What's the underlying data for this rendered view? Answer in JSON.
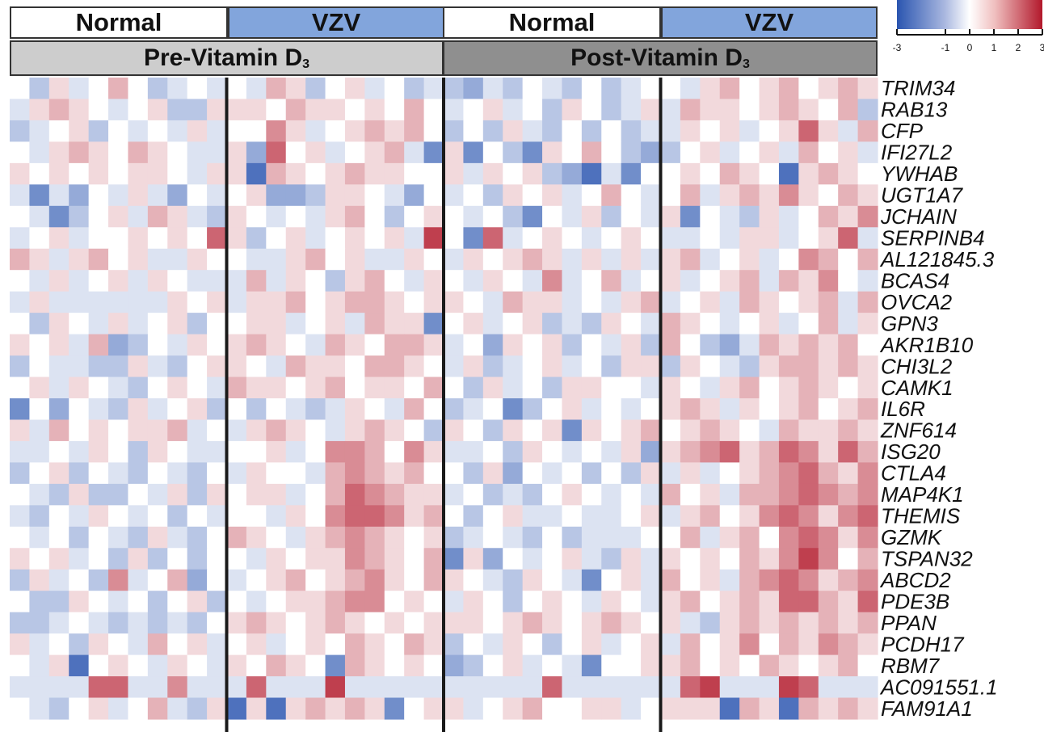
{
  "groups": [
    "Normal",
    "VZV",
    "Normal",
    "VZV"
  ],
  "conditions": [
    "Pre-Vitamin D",
    "Post-Vitamin D"
  ],
  "subscript": "3",
  "colors": {
    "low": "#2a55b0",
    "mid": "#ffffff",
    "high": "#b2182b",
    "normal_header": "#ffffff",
    "vzv_header": "#82a5dc",
    "pre_header": "#cdcdcd",
    "post_header": "#8f8f8f"
  },
  "chart_data": {
    "type": "heatmap",
    "scale": {
      "min": -3,
      "max": 3,
      "ticks": [
        -3,
        -1,
        0,
        1,
        2,
        3
      ],
      "colormap": [
        "blue",
        "white",
        "red"
      ]
    },
    "columns_per_block": 11,
    "blocks": [
      "Pre-Vitamin D3 Normal",
      "Pre-Vitamin D3 VZV",
      "Post-Vitamin D3 Normal",
      "Post-Vitamin D3 VZV"
    ],
    "genes": [
      "TRIM34",
      "RAB13",
      "CFP",
      "IFI27L2",
      "YWHAB",
      "UGT1A7",
      "JCHAIN",
      "SERPINB4",
      "AL121845.3",
      "BCAS4",
      "OVCA2",
      "GPN3",
      "AKR1B10",
      "CHI3L2",
      "CAMK1",
      "IL6R",
      "ZNF614",
      "ISG20",
      "CTLA4",
      "MAP4K1",
      "THEMIS",
      "GZMK",
      "TSPAN32",
      "ABCD2",
      "PDE3B",
      "PPAN",
      "PCDH17",
      "RBM7",
      "AC091551.1",
      "FAM91A1"
    ],
    "values": [
      [
        0,
        -1,
        0.5,
        -0.5,
        0,
        1,
        0,
        -1,
        -0.5,
        0,
        -0.5,
        0,
        -0.5,
        1,
        0.5,
        -1,
        0,
        0.5,
        -0.5,
        0,
        -1,
        -0.5,
        -1,
        -1.5,
        -0.5,
        -1,
        0,
        -0.5,
        -1,
        0,
        -1,
        -0.5,
        0,
        0,
        -0.5,
        0.5,
        1,
        0,
        0.5,
        1,
        0,
        0.5,
        1,
        0.5
      ],
      [
        -0.5,
        0.5,
        1,
        0.5,
        0,
        -0.5,
        0,
        0.5,
        -1,
        -1,
        0.5,
        0.5,
        0.5,
        0,
        1,
        0.5,
        0.5,
        0,
        0.5,
        0,
        1,
        0,
        -0.5,
        0,
        0.5,
        -0.5,
        0,
        -1,
        0.5,
        0,
        -1,
        -0.5,
        0.5,
        -0.5,
        1,
        0.5,
        0.5,
        0,
        0.5,
        1,
        0.5,
        0,
        1,
        -1
      ],
      [
        -1,
        -0.5,
        0,
        0.5,
        -1,
        0,
        -0.5,
        0,
        -0.5,
        0.5,
        -0.5,
        0,
        0,
        1.5,
        0.5,
        -0.5,
        0,
        0.5,
        1,
        0.5,
        1,
        0,
        -1,
        0,
        -1,
        0.5,
        -0.5,
        -1,
        0,
        -1,
        0,
        -1,
        -0.5,
        -0.5,
        0.5,
        0,
        0.5,
        -0.5,
        0,
        0.5,
        2,
        0.5,
        -0.5,
        1
      ],
      [
        0,
        -0.5,
        0.5,
        1,
        0.5,
        0,
        1,
        0.5,
        0,
        -0.5,
        -0.5,
        0.5,
        -1.5,
        2,
        0,
        0.5,
        -0.5,
        0,
        0.5,
        1,
        -0.5,
        -2,
        0.5,
        -2,
        0,
        -1,
        -2,
        0.5,
        0,
        1,
        0,
        -1,
        -1.5,
        -1,
        0,
        0.5,
        -0.5,
        0,
        0.5,
        -0.5,
        1,
        0,
        0.5,
        -0.5
      ],
      [
        0.5,
        0,
        0.5,
        0,
        0.5,
        0,
        0.5,
        0.5,
        0,
        -0.5,
        0.5,
        0.5,
        -2.5,
        1,
        0.5,
        0,
        0.5,
        1,
        0.5,
        0.5,
        0,
        0,
        0.5,
        -0.5,
        0.5,
        0,
        0.5,
        -1,
        -1.5,
        -2.5,
        -0.5,
        -2,
        0,
        0,
        0.5,
        0,
        1,
        0.5,
        0,
        -2.5,
        0.5,
        1,
        0.5,
        0
      ],
      [
        -0.5,
        -2,
        -0.5,
        -1.5,
        0,
        -0.5,
        0.5,
        -0.5,
        -1.5,
        0,
        -0.5,
        0,
        0.5,
        -1.5,
        -1.5,
        -1,
        0.5,
        0.5,
        0,
        -0.5,
        -1.5,
        0,
        -0.5,
        0,
        -1,
        0.5,
        0,
        0.5,
        -0.5,
        0,
        1,
        0,
        -0.5,
        0,
        1,
        -0.5,
        0.5,
        1,
        0.5,
        1.5,
        0.5,
        0,
        1,
        0.5
      ],
      [
        0,
        -0.5,
        -2,
        -1,
        0,
        0.5,
        -0.5,
        1,
        0.5,
        -0.5,
        -1,
        0.5,
        0,
        -0.5,
        0,
        -0.5,
        0.5,
        1,
        0,
        -1,
        0,
        0.5,
        0,
        -0.5,
        0,
        -1,
        -2,
        0,
        -0.5,
        0.5,
        -1,
        0,
        -0.5,
        0.5,
        -2,
        0,
        -0.5,
        -1,
        0.5,
        -0.5,
        0,
        1,
        0.5,
        1.5
      ],
      [
        -0.5,
        0,
        0.5,
        -0.5,
        0,
        0,
        0.5,
        0,
        0.5,
        0,
        2,
        0.5,
        -1,
        0,
        0.5,
        -0.5,
        0,
        0.5,
        0,
        0.5,
        -0.5,
        2.5,
        0,
        -2,
        2,
        -0.5,
        0,
        0.5,
        0,
        -0.5,
        0,
        0.5,
        0,
        -0.5,
        -0.5,
        0,
        -0.5,
        0.5,
        0.5,
        -0.5,
        0,
        0.5,
        2,
        -0.5
      ],
      [
        1,
        0.5,
        -0.5,
        0.5,
        1,
        0,
        0.5,
        -0.5,
        -0.5,
        0.5,
        0,
        0,
        -0.5,
        -0.5,
        0.5,
        1,
        0,
        0.5,
        -0.5,
        -0.5,
        0.5,
        0,
        -0.5,
        0.5,
        0,
        0.5,
        1,
        0.5,
        -0.5,
        0.5,
        -0.5,
        0.5,
        -0.5,
        0.5,
        1,
        -0.5,
        0,
        0.5,
        -0.5,
        0,
        1.5,
        1,
        0,
        1
      ],
      [
        0,
        -0.5,
        0.5,
        -0.5,
        0,
        0.5,
        -0.5,
        0.5,
        0,
        -0.5,
        -0.5,
        -0.5,
        1,
        -0.5,
        0.5,
        0,
        -1,
        0.5,
        1,
        0,
        -0.5,
        0.5,
        0,
        -0.5,
        0.5,
        0,
        -0.5,
        1.5,
        -0.5,
        0,
        1,
        -0.5,
        0,
        0.5,
        -0.5,
        0,
        0.5,
        1,
        -0.5,
        1,
        0.5,
        1.5,
        0,
        -0.5
      ],
      [
        -0.5,
        0.5,
        -0.5,
        -0.5,
        -0.5,
        -0.5,
        -0.5,
        -0.5,
        0.5,
        0,
        0.5,
        -0.5,
        0.5,
        0.5,
        1,
        0,
        0.5,
        1,
        1,
        0.5,
        0,
        0.5,
        0.5,
        0,
        -0.5,
        1,
        0.5,
        0.5,
        -0.5,
        0,
        -0.5,
        0.5,
        1,
        -0.5,
        0,
        0.5,
        -0.5,
        1,
        0.5,
        0,
        0.5,
        1,
        -0.5,
        1
      ],
      [
        0,
        -1,
        0.5,
        0,
        -0.5,
        0.5,
        -0.5,
        0,
        0.5,
        -1,
        0,
        0,
        0.5,
        0.5,
        -0.5,
        0,
        0.5,
        -0.5,
        1,
        0.5,
        0.5,
        -2,
        0,
        0.5,
        -0.5,
        0,
        0.5,
        -1,
        -0.5,
        -1,
        0.5,
        0,
        -0.5,
        1,
        0.5,
        0,
        -0.5,
        0,
        0.5,
        -0.5,
        0,
        1,
        -0.5,
        0.5
      ],
      [
        0.5,
        0,
        0.5,
        -0.5,
        1,
        -1.5,
        -1,
        0,
        -0.5,
        0.5,
        0,
        0.5,
        1,
        0.5,
        0,
        -0.5,
        1,
        0.5,
        0,
        1,
        1,
        0.5,
        -0.5,
        0,
        -1.5,
        0.5,
        0,
        0.5,
        -1,
        0,
        -0.5,
        0.5,
        -1,
        1,
        0,
        -1,
        -1.5,
        -0.5,
        1,
        0.5,
        1,
        0.5,
        1,
        0
      ],
      [
        -1,
        0,
        -0.5,
        -0.5,
        -1,
        -1,
        0.5,
        -0.5,
        -1,
        0,
        0.5,
        0.5,
        0,
        -0.5,
        1,
        0.5,
        0.5,
        0,
        1,
        1,
        0.5,
        0,
        -0.5,
        0.5,
        -1,
        -0.5,
        0,
        0.5,
        -0.5,
        0,
        -1,
        0.5,
        0.5,
        -1,
        0.5,
        0,
        -0.5,
        -1,
        0.5,
        1,
        1,
        0.5,
        1,
        0.5
      ],
      [
        0,
        0.5,
        -0.5,
        0.5,
        0,
        -0.5,
        -1,
        0,
        0.5,
        0,
        -0.5,
        1,
        0.5,
        0.5,
        0,
        0.5,
        1,
        0,
        0.5,
        0.5,
        0,
        1,
        0,
        -1,
        0.5,
        -0.5,
        0,
        -1,
        0.5,
        0.5,
        0,
        0,
        -0.5,
        0.5,
        0,
        -0.5,
        0.5,
        1,
        0,
        0.5,
        1,
        0.5,
        0,
        0.5
      ],
      [
        -2,
        0,
        -1.5,
        0,
        -0.5,
        -1,
        0.5,
        -0.5,
        0,
        0.5,
        -1,
        0,
        -1,
        0,
        -0.5,
        -1,
        -0.5,
        0.5,
        0,
        -0.5,
        1,
        0,
        -1,
        -0.5,
        0,
        -2,
        -1,
        0,
        0.5,
        -0.5,
        0,
        -0.5,
        0,
        0.5,
        1,
        0.5,
        -0.5,
        0.5,
        0,
        0.5,
        1,
        0,
        0.5,
        1
      ],
      [
        0.5,
        -0.5,
        1,
        0,
        0.5,
        0,
        0.5,
        0.5,
        1,
        -0.5,
        0,
        -0.5,
        0.5,
        1,
        0.5,
        0,
        -0.5,
        0.5,
        1,
        0.5,
        0,
        -1,
        0.5,
        0,
        -1,
        0.5,
        0,
        0.5,
        -2,
        0.5,
        0,
        0.5,
        1,
        0,
        0.5,
        1,
        0.5,
        0,
        -0.5,
        1,
        0.5,
        0.5,
        1,
        0.5
      ],
      [
        -0.5,
        -0.5,
        0,
        -0.5,
        0.5,
        0,
        -1,
        0.5,
        0,
        -0.5,
        -0.5,
        0,
        0,
        0.5,
        -0.5,
        0,
        1.5,
        1.5,
        1,
        0,
        1.5,
        0.5,
        -0.5,
        -0.5,
        0,
        -1,
        0.5,
        0,
        -0.5,
        0,
        -0.5,
        0.5,
        -1.5,
        0.5,
        1,
        1.5,
        2,
        0.5,
        1,
        2,
        1.5,
        0.5,
        2,
        1
      ],
      [
        -1,
        0,
        0.5,
        -1,
        0,
        -0.5,
        -1,
        0,
        -0.5,
        -1,
        0,
        -0.5,
        0.5,
        0,
        0,
        -0.5,
        1,
        1.5,
        1,
        0.5,
        1,
        0,
        0,
        -1,
        0.5,
        -1.5,
        0,
        -0.5,
        0,
        -1,
        0,
        -1,
        0.5,
        -0.5,
        0.5,
        -0.5,
        0,
        0.5,
        1,
        1.5,
        2,
        1,
        0.5,
        1.5
      ],
      [
        0,
        -0.5,
        -1,
        0.5,
        -1,
        -1,
        0,
        -0.5,
        0.5,
        -1,
        0.5,
        0,
        0.5,
        0.5,
        -0.5,
        0,
        1,
        2,
        1.5,
        1,
        0.5,
        0.5,
        -0.5,
        0,
        -1,
        -0.5,
        -1,
        0,
        0.5,
        0,
        -0.5,
        0,
        -0.5,
        1,
        0,
        0.5,
        -0.5,
        1,
        1,
        1.5,
        2,
        1.5,
        1,
        1.5
      ],
      [
        -0.5,
        -1,
        0,
        -0.5,
        0.5,
        0,
        -0.5,
        0,
        -1,
        0,
        -0.5,
        0,
        0,
        -0.5,
        0.5,
        0,
        1.5,
        2,
        2,
        1.5,
        0.5,
        1,
        0,
        -1,
        0,
        0.5,
        -0.5,
        -0.5,
        0,
        -0.5,
        -0.5,
        0,
        0.5,
        -0.5,
        0.5,
        1,
        0,
        0.5,
        1.5,
        2,
        1.5,
        0.5,
        1.5,
        2
      ],
      [
        0,
        -0.5,
        0,
        -1,
        0,
        -0.5,
        -1,
        0.5,
        -0.5,
        -1,
        0,
        1,
        0.5,
        0,
        -0.5,
        0.5,
        1,
        1.5,
        1,
        0.5,
        0,
        0.5,
        -1,
        -0.5,
        0,
        -0.5,
        -1,
        0,
        -1,
        -0.5,
        -0.5,
        -0.5,
        0,
        0,
        1,
        -0.5,
        0.5,
        1,
        0,
        1.5,
        2,
        1.5,
        0.5,
        1.5
      ],
      [
        0.5,
        0,
        0.5,
        -0.5,
        0,
        -1,
        0.5,
        -1,
        0,
        -1,
        0,
        0,
        -0.5,
        0.5,
        0,
        0.5,
        0.5,
        1.5,
        1,
        0.5,
        0,
        1,
        -2,
        0.5,
        -1.5,
        0,
        -0.5,
        0,
        0.5,
        -0.5,
        -1,
        0.5,
        -0.5,
        0.5,
        0,
        0.5,
        0,
        1,
        0.5,
        1.5,
        2.5,
        1.5,
        0,
        1
      ],
      [
        -1,
        0.5,
        -0.5,
        0,
        -1,
        1.5,
        -0.5,
        0,
        1,
        -1.5,
        0,
        -0.5,
        0,
        0.5,
        1,
        0,
        0.5,
        1,
        1.5,
        0.5,
        0,
        1,
        0.5,
        0,
        -0.5,
        -1,
        0.5,
        0,
        -0.5,
        -2,
        0,
        0.5,
        -0.5,
        1,
        0,
        0.5,
        -0.5,
        1,
        1.5,
        2,
        1.5,
        0.5,
        1,
        1.5
      ],
      [
        0,
        -1,
        -1,
        0.5,
        0,
        -0.5,
        0,
        -1,
        0,
        0.5,
        -1,
        0,
        -0.5,
        0,
        0.5,
        0.5,
        1,
        1.5,
        1.5,
        0,
        0.5,
        0,
        -0.5,
        0.5,
        0,
        -1,
        0,
        0.5,
        0,
        -0.5,
        0.5,
        0,
        -0.5,
        0.5,
        1,
        0,
        0.5,
        1,
        0.5,
        2,
        2,
        1,
        0.5,
        2
      ],
      [
        -1,
        -1,
        -0.5,
        0,
        -0.5,
        -1,
        -0.5,
        -1,
        -0.5,
        -1,
        0,
        0.5,
        1,
        0.5,
        0,
        0.5,
        1,
        0.5,
        0,
        0.5,
        0,
        0.5,
        0.5,
        0.5,
        0,
        0.5,
        1,
        0.5,
        0,
        0.5,
        1,
        0.5,
        0,
        0.5,
        -0.5,
        -1,
        0.5,
        1,
        0.5,
        1,
        0.5,
        1,
        0.5,
        1
      ],
      [
        0.5,
        -0.5,
        0,
        -1,
        0.5,
        0,
        -0.5,
        1,
        0,
        0.5,
        -0.5,
        0,
        0.5,
        -0.5,
        0,
        0.5,
        0,
        1,
        0.5,
        0,
        1,
        0.5,
        -1,
        0,
        -0.5,
        0.5,
        0,
        -1,
        0,
        0.5,
        -0.5,
        0,
        0.5,
        -0.5,
        1,
        0,
        0.5,
        1.5,
        0,
        1,
        0.5,
        1.5,
        1,
        0.5
      ],
      [
        0,
        -0.5,
        0.5,
        -2.5,
        0,
        0.5,
        0,
        -0.5,
        0.5,
        0,
        -0.5,
        0.5,
        0,
        1,
        0.5,
        0,
        -2,
        1,
        0.5,
        0,
        0.5,
        0,
        -1.5,
        -1,
        0,
        0.5,
        -0.5,
        0,
        -0.5,
        -2,
        0,
        0,
        0.5,
        0.5,
        1,
        0,
        0.5,
        0,
        1,
        0.5,
        0,
        0.5,
        1,
        0
      ],
      [
        -0.5,
        -0.5,
        -0.5,
        -0.5,
        2,
        2,
        -0.5,
        -0.5,
        1.5,
        -0.5,
        -0.5,
        -0.5,
        2,
        -0.5,
        -0.5,
        -0.5,
        2.5,
        -0.5,
        -0.5,
        -0.5,
        -0.5,
        -0.5,
        -0.5,
        -0.5,
        -0.5,
        -0.5,
        -0.5,
        2,
        -0.5,
        -0.5,
        -0.5,
        -0.5,
        -0.5,
        -0.5,
        2,
        2.5,
        -0.5,
        -0.5,
        -0.5,
        2.5,
        2,
        -0.5,
        -0.5,
        -0.5
      ],
      [
        0,
        -0.5,
        -1,
        0,
        0.5,
        -0.5,
        0,
        1,
        -0.5,
        -1,
        0.5,
        -2.5,
        0.5,
        -2.5,
        0.5,
        1,
        0.5,
        1,
        0.5,
        -2,
        0,
        0.5,
        0.5,
        -0.5,
        0,
        0.5,
        1,
        0,
        0,
        0.5,
        0.5,
        -0.5,
        0,
        0.5,
        0.5,
        0.5,
        -2.5,
        1,
        0.5,
        -2.5,
        1,
        0.5,
        1,
        0.5
      ]
    ]
  }
}
